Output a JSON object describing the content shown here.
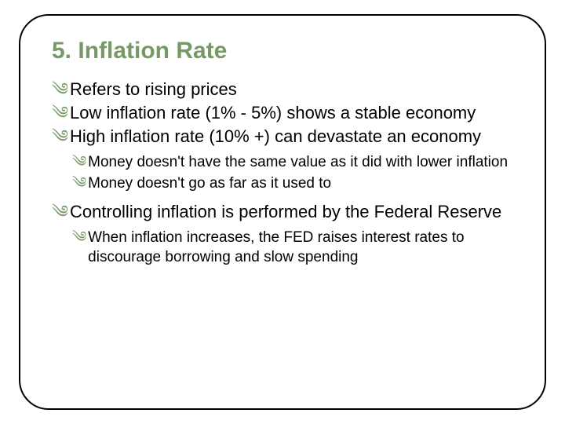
{
  "slide": {
    "title": "5. Inflation Rate",
    "title_color": "#779966",
    "bullet_marker": "༄",
    "bullets": [
      {
        "text": "Refers to rising prices"
      },
      {
        "text": "Low inflation rate (1% - 5%) shows a stable economy"
      },
      {
        "text": "High inflation rate (10% +) can devastate an economy"
      }
    ],
    "sub_bullets_1": [
      {
        "text": "Money doesn't have the same value as it did with lower inflation"
      },
      {
        "text": "Money doesn't go as far as it used to"
      }
    ],
    "bullets_2": [
      {
        "text": "Controlling inflation is performed by the Federal Reserve"
      }
    ],
    "sub_bullets_2": [
      {
        "text": "When inflation increases, the FED raises interest rates to discourage borrowing and slow spending"
      }
    ]
  }
}
